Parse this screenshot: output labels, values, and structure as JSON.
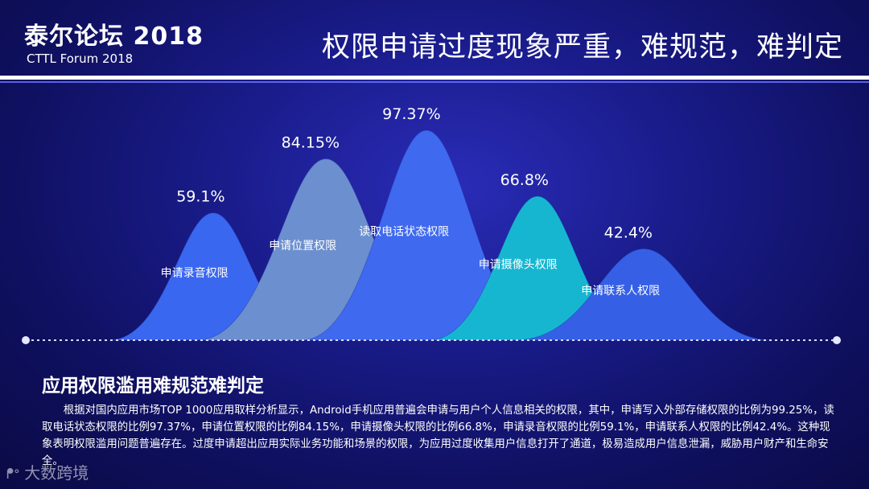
{
  "header": {
    "brand_title": "泰尔论坛 2018",
    "brand_subtitle": "CTTL Forum 2018",
    "slide_title": "权限申请过度现象严重，难规范，难判定"
  },
  "chart_data": {
    "type": "area",
    "title": "",
    "unit": "%",
    "series": [
      {
        "name": "申请录音权限",
        "value": 59.1,
        "value_label": "59.1%",
        "color": "#3a67f0"
      },
      {
        "name": "申请位置权限",
        "value": 84.15,
        "value_label": "84.15%",
        "color": "#6c8fcf"
      },
      {
        "name": "读取电话状态权限",
        "value": 97.37,
        "value_label": "97.37%",
        "color": "#3f69ef"
      },
      {
        "name": "申请摄像头权限",
        "value": 66.8,
        "value_label": "66.8%",
        "color": "#16b6d1"
      },
      {
        "name": "申请联系人权限",
        "value": 42.4,
        "value_label": "42.4%",
        "color": "#3560e6"
      }
    ],
    "ylim": [
      0,
      100
    ],
    "grid": false,
    "legend": "none"
  },
  "content": {
    "heading": "应用权限滥用难规范难判定",
    "paragraph": "根据对国内应用市场TOP 1000应用取样分析显示，Android手机应用普遍会申请与用户个人信息相关的权限，其中，申请写入外部存储权限的比例为99.25%，读取电话状态权限的比例97.37%，申请位置权限的比例84.15%，申请摄像头权限的比例66.8%，申请录音权限的比例59.1%，申请联系人权限的比例42.4%。这种现象表明权限滥用问题普遍存在。过度申请超出应用实际业务功能和场景的权限，为应用过度收集用户信息打开了通道，极易造成用户信息泄漏，威胁用户财产和生命安全。"
  },
  "watermark": {
    "text": "大数跨境"
  }
}
